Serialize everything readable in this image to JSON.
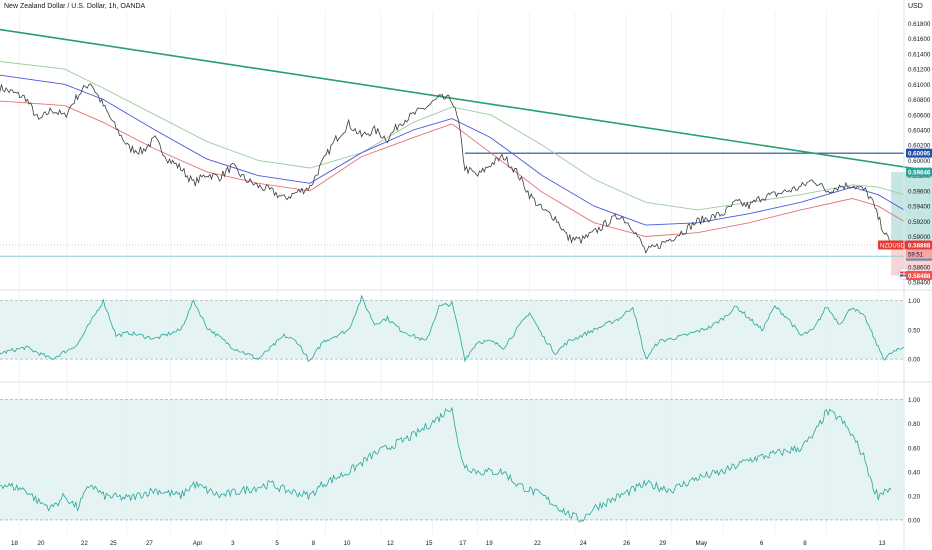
{
  "header": {
    "title": "New Zealand Dollar / U.S. Dollar, 1h, OANDA",
    "currency": "USD"
  },
  "colors": {
    "price": "#3c3c3c",
    "ma_red": "#e57373",
    "ma_blue": "#4a57e0",
    "ma_green": "#9ccc9c",
    "trendline": "#26a069",
    "resistance": "#1e4ea8",
    "support": "#8fd0d6",
    "target_zone": "#b2dfdb",
    "stop_zone": "#f8c9c9",
    "osc": "#26a69a",
    "osc_band": "#e0f2f1",
    "axis_text": "#131722",
    "tag_price": "#e53935",
    "tag_res": "#1e4ea8",
    "tag_target": "#26a69a",
    "tag_stop": "#ef5350",
    "tag_support": "#6c8ea8"
  },
  "chart_data": [
    {
      "type": "line",
      "name": "price",
      "x_tick_labels": [
        "18",
        "20",
        "22",
        "25",
        "27",
        "Apr",
        "3",
        "5",
        "8",
        "10",
        "12",
        "15",
        "17",
        "19",
        "22",
        "24",
        "26",
        "29",
        "May",
        "6",
        "8",
        "13"
      ],
      "y_ticks": [
        0.618,
        0.616,
        0.614,
        0.612,
        0.61,
        0.608,
        0.606,
        0.604,
        0.602,
        0.6,
        0.598,
        0.596,
        0.594,
        0.592,
        0.59,
        0.588,
        0.586,
        0.584
      ],
      "y_tick_labels": [
        "0.61800",
        "0.61600",
        "0.61400",
        "0.61200",
        "0.61000",
        "0.60800",
        "0.60600",
        "0.60400",
        "0.60200",
        "0.60000",
        "0.59800",
        "0.59600",
        "0.59400",
        "0.59200",
        "0.59000",
        "0.58800",
        "0.58600",
        "0.58400"
      ],
      "ylim": [
        0.5835,
        0.6195
      ],
      "xlim": [
        0,
        70
      ],
      "price_path": [
        [
          0,
          0.6096
        ],
        [
          2,
          0.6082
        ],
        [
          3,
          0.6052
        ],
        [
          4,
          0.6067
        ],
        [
          5,
          0.6058
        ],
        [
          6,
          0.6085
        ],
        [
          7,
          0.6103
        ],
        [
          8,
          0.6072
        ],
        [
          9,
          0.6042
        ],
        [
          10,
          0.6016
        ],
        [
          11,
          0.6012
        ],
        [
          12,
          0.6028
        ],
        [
          13,
          0.6002
        ],
        [
          14,
          0.599
        ],
        [
          15,
          0.597
        ],
        [
          16,
          0.5982
        ],
        [
          17,
          0.5978
        ],
        [
          18,
          0.5992
        ],
        [
          19,
          0.5975
        ],
        [
          20,
          0.5966
        ],
        [
          21,
          0.596
        ],
        [
          22,
          0.595
        ],
        [
          23,
          0.5958
        ],
        [
          24,
          0.5965
        ],
        [
          25,
          0.5998
        ],
        [
          26,
          0.6028
        ],
        [
          27,
          0.6048
        ],
        [
          28,
          0.6032
        ],
        [
          29,
          0.604
        ],
        [
          30,
          0.6028
        ],
        [
          31,
          0.605
        ],
        [
          32,
          0.606
        ],
        [
          33,
          0.607
        ],
        [
          34,
          0.6082
        ],
        [
          35,
          0.608
        ],
        [
          35.5,
          0.605
        ],
        [
          36,
          0.599
        ],
        [
          37,
          0.598
        ],
        [
          38,
          0.5995
        ],
        [
          39,
          0.6005
        ],
        [
          40,
          0.5985
        ],
        [
          41,
          0.5955
        ],
        [
          42,
          0.5935
        ],
        [
          43,
          0.5925
        ],
        [
          44,
          0.5898
        ],
        [
          45,
          0.5895
        ],
        [
          46,
          0.5905
        ],
        [
          47,
          0.5918
        ],
        [
          48,
          0.5928
        ],
        [
          49,
          0.5912
        ],
        [
          50,
          0.588
        ],
        [
          51,
          0.5888
        ],
        [
          52,
          0.5898
        ],
        [
          53,
          0.5908
        ],
        [
          54,
          0.592
        ],
        [
          55,
          0.5925
        ],
        [
          56,
          0.593
        ],
        [
          57,
          0.5945
        ],
        [
          58,
          0.594
        ],
        [
          59,
          0.5952
        ],
        [
          60,
          0.5955
        ],
        [
          61,
          0.596
        ],
        [
          62,
          0.5965
        ],
        [
          63,
          0.5975
        ],
        [
          64,
          0.596
        ],
        [
          65,
          0.5966
        ],
        [
          66,
          0.5968
        ],
        [
          67,
          0.596
        ],
        [
          67.5,
          0.5948
        ],
        [
          68,
          0.5925
        ],
        [
          68.5,
          0.5905
        ],
        [
          69,
          0.5888
        ]
      ],
      "ma_red": [
        [
          0,
          0.6078
        ],
        [
          5,
          0.6072
        ],
        [
          8,
          0.605
        ],
        [
          12,
          0.6015
        ],
        [
          16,
          0.5985
        ],
        [
          20,
          0.597
        ],
        [
          24,
          0.596
        ],
        [
          28,
          0.6005
        ],
        [
          32,
          0.603
        ],
        [
          35,
          0.6048
        ],
        [
          38,
          0.601
        ],
        [
          42,
          0.5958
        ],
        [
          46,
          0.5918
        ],
        [
          50,
          0.59
        ],
        [
          54,
          0.5905
        ],
        [
          58,
          0.5918
        ],
        [
          62,
          0.5935
        ],
        [
          66,
          0.595
        ],
        [
          68,
          0.594
        ],
        [
          70,
          0.592
        ]
      ],
      "ma_blue": [
        [
          0,
          0.6112
        ],
        [
          5,
          0.61
        ],
        [
          8,
          0.608
        ],
        [
          12,
          0.604
        ],
        [
          16,
          0.6002
        ],
        [
          20,
          0.598
        ],
        [
          24,
          0.597
        ],
        [
          28,
          0.601
        ],
        [
          32,
          0.604
        ],
        [
          35,
          0.6055
        ],
        [
          38,
          0.603
        ],
        [
          42,
          0.598
        ],
        [
          46,
          0.594
        ],
        [
          50,
          0.5915
        ],
        [
          54,
          0.5918
        ],
        [
          58,
          0.593
        ],
        [
          62,
          0.5945
        ],
        [
          66,
          0.5965
        ],
        [
          68,
          0.5955
        ],
        [
          70,
          0.5935
        ]
      ],
      "ma_green": [
        [
          0,
          0.613
        ],
        [
          5,
          0.612
        ],
        [
          8,
          0.6095
        ],
        [
          12,
          0.606
        ],
        [
          16,
          0.6025
        ],
        [
          20,
          0.6
        ],
        [
          24,
          0.599
        ],
        [
          28,
          0.601
        ],
        [
          32,
          0.605
        ],
        [
          35,
          0.607
        ],
        [
          38,
          0.606
        ],
        [
          42,
          0.602
        ],
        [
          46,
          0.5975
        ],
        [
          50,
          0.5945
        ],
        [
          54,
          0.5935
        ],
        [
          58,
          0.5945
        ],
        [
          62,
          0.5955
        ],
        [
          66,
          0.5968
        ],
        [
          68,
          0.5965
        ],
        [
          70,
          0.5955
        ]
      ],
      "trendline": [
        [
          0,
          0.6172
        ],
        [
          88,
          0.5945
        ]
      ],
      "resistance_level": 0.60095,
      "support_level": 0.58741,
      "target_level": 0.59846,
      "stop_level": 0.58488,
      "entry_level": 0.58888,
      "position_box_x": [
        69,
        75.5
      ],
      "event_markers_x": [
        70,
        75
      ],
      "price_tags": [
        {
          "label": "0.60095",
          "value": 0.60095,
          "kind": "res"
        },
        {
          "label": "0.59846",
          "value": 0.59846,
          "kind": "target"
        },
        {
          "label": "0.58888",
          "value": 0.58888,
          "kind": "price"
        },
        {
          "label": "0.58741",
          "value": 0.58741,
          "kind": "support"
        },
        {
          "label": "0.58488",
          "value": 0.58488,
          "kind": "stop"
        }
      ],
      "symbol_tag": "NZDUSD",
      "countdown": "59:51"
    },
    {
      "type": "line",
      "name": "oscillator 1",
      "y_tick_labels": [
        "1.00",
        "0.50",
        "0.00"
      ],
      "y_ticks": [
        1.0,
        0.5,
        0.0
      ],
      "ylim": [
        -0.05,
        1.08
      ],
      "band": [
        0.0,
        1.0
      ],
      "values": [
        [
          0,
          0.1
        ],
        [
          2,
          0.2
        ],
        [
          4,
          0.0
        ],
        [
          6,
          0.25
        ],
        [
          8,
          1.0
        ],
        [
          9,
          0.4
        ],
        [
          10,
          0.45
        ],
        [
          12,
          0.35
        ],
        [
          14,
          0.5
        ],
        [
          15,
          1.0
        ],
        [
          16,
          0.55
        ],
        [
          18,
          0.2
        ],
        [
          20,
          0.0
        ],
        [
          22,
          0.4
        ],
        [
          23,
          0.3
        ],
        [
          24,
          -0.05
        ],
        [
          25,
          0.3
        ],
        [
          27,
          0.5
        ],
        [
          28,
          1.05
        ],
        [
          29,
          0.6
        ],
        [
          30,
          0.7
        ],
        [
          31,
          0.5
        ],
        [
          33,
          0.3
        ],
        [
          34,
          0.9
        ],
        [
          35,
          0.95
        ],
        [
          35.5,
          0.5
        ],
        [
          36,
          0.0
        ],
        [
          37,
          0.3
        ],
        [
          38,
          0.3
        ],
        [
          39,
          0.2
        ],
        [
          41,
          0.8
        ],
        [
          42,
          0.4
        ],
        [
          43,
          0.1
        ],
        [
          44,
          0.3
        ],
        [
          46,
          0.5
        ],
        [
          47,
          0.6
        ],
        [
          48,
          0.7
        ],
        [
          49,
          0.9
        ],
        [
          50,
          0.0
        ],
        [
          51,
          0.3
        ],
        [
          53,
          0.4
        ],
        [
          55,
          0.55
        ],
        [
          56,
          0.7
        ],
        [
          57,
          0.9
        ],
        [
          58,
          0.7
        ],
        [
          59,
          0.5
        ],
        [
          60,
          0.9
        ],
        [
          61,
          0.7
        ],
        [
          62,
          0.4
        ],
        [
          63,
          0.5
        ],
        [
          64,
          0.9
        ],
        [
          65,
          0.6
        ],
        [
          66,
          0.9
        ],
        [
          67,
          0.7
        ],
        [
          68,
          0.2
        ],
        [
          68.5,
          0.0
        ],
        [
          69,
          0.1
        ],
        [
          70,
          0.2
        ]
      ]
    },
    {
      "type": "line",
      "name": "oscillator 2",
      "y_tick_labels": [
        "1.00",
        "0.80",
        "0.60",
        "0.40",
        "0.20",
        "0.00"
      ],
      "y_ticks": [
        1.0,
        0.8,
        0.6,
        0.4,
        0.2,
        0.0
      ],
      "ylim": [
        -0.05,
        1.03
      ],
      "band": [
        0.0,
        1.0
      ],
      "values": [
        [
          0,
          0.3
        ],
        [
          2,
          0.25
        ],
        [
          3,
          0.15
        ],
        [
          4,
          0.1
        ],
        [
          5,
          0.2
        ],
        [
          6,
          0.1
        ],
        [
          7,
          0.3
        ],
        [
          8,
          0.2
        ],
        [
          10,
          0.18
        ],
        [
          12,
          0.25
        ],
        [
          14,
          0.2
        ],
        [
          15,
          0.3
        ],
        [
          17,
          0.2
        ],
        [
          19,
          0.25
        ],
        [
          21,
          0.3
        ],
        [
          22,
          0.25
        ],
        [
          24,
          0.2
        ],
        [
          25,
          0.3
        ],
        [
          27,
          0.4
        ],
        [
          29,
          0.55
        ],
        [
          30,
          0.6
        ],
        [
          32,
          0.7
        ],
        [
          34,
          0.85
        ],
        [
          35,
          0.95
        ],
        [
          35.5,
          0.6
        ],
        [
          36,
          0.45
        ],
        [
          37,
          0.4
        ],
        [
          39,
          0.4
        ],
        [
          40,
          0.3
        ],
        [
          42,
          0.2
        ],
        [
          44,
          0.05
        ],
        [
          45,
          0.0
        ],
        [
          46,
          0.1
        ],
        [
          48,
          0.2
        ],
        [
          50,
          0.3
        ],
        [
          52,
          0.25
        ],
        [
          54,
          0.35
        ],
        [
          56,
          0.4
        ],
        [
          58,
          0.5
        ],
        [
          60,
          0.55
        ],
        [
          62,
          0.6
        ],
        [
          63,
          0.7
        ],
        [
          64,
          0.9
        ],
        [
          65,
          0.85
        ],
        [
          66,
          0.7
        ],
        [
          67,
          0.5
        ],
        [
          67.5,
          0.3
        ],
        [
          68,
          0.2
        ],
        [
          68.5,
          0.25
        ],
        [
          69,
          0.25
        ]
      ]
    }
  ]
}
